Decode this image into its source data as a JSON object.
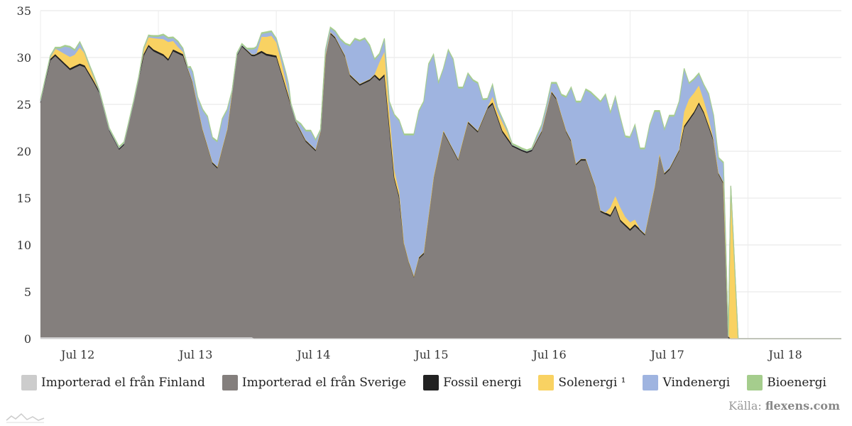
{
  "chart_data": {
    "type": "area",
    "stacked": true,
    "ylim": [
      0,
      35
    ],
    "yticks": [
      0,
      5,
      10,
      15,
      20,
      25,
      30,
      35
    ],
    "xlim": [
      0,
      163
    ],
    "x_ticks": [
      {
        "x": 4,
        "label": "Jul 12"
      },
      {
        "x": 28,
        "label": "Jul 13"
      },
      {
        "x": 52,
        "label": "Jul 14"
      },
      {
        "x": 76,
        "label": "Jul 15"
      },
      {
        "x": 100,
        "label": "Jul 16"
      },
      {
        "x": 124,
        "label": "Jul 17"
      },
      {
        "x": 148,
        "label": "Jul 18"
      }
    ],
    "x_unit": "hours from Jul 12 00:00 (approx.)",
    "series": [
      {
        "name": "Importerad el från Finland",
        "color": "#cccccc",
        "points": [
          [
            0,
            0.15
          ],
          [
            43,
            0.15
          ],
          [
            43,
            0
          ]
        ]
      },
      {
        "name": "Importerad el från Sverige",
        "color": "#847f7d",
        "points": [
          [
            0,
            25
          ],
          [
            2,
            29.5
          ],
          [
            3,
            30
          ],
          [
            6,
            28.5
          ],
          [
            8,
            29
          ],
          [
            9,
            28.8
          ],
          [
            11,
            27
          ],
          [
            12,
            26
          ],
          [
            14,
            22
          ],
          [
            16,
            20
          ],
          [
            17,
            20.5
          ],
          [
            19,
            25
          ],
          [
            21,
            30
          ],
          [
            22,
            31
          ],
          [
            23,
            30.5
          ],
          [
            25,
            30
          ],
          [
            26,
            29.5
          ],
          [
            27,
            30.5
          ],
          [
            29,
            30
          ],
          [
            31,
            27
          ],
          [
            33,
            22
          ],
          [
            35,
            18.5
          ],
          [
            36,
            18
          ],
          [
            38,
            22
          ],
          [
            40,
            30
          ],
          [
            41,
            31
          ],
          [
            43,
            30
          ],
          [
            45,
            30.5
          ],
          [
            46,
            30.2
          ],
          [
            48,
            30
          ],
          [
            50,
            26.5
          ],
          [
            52,
            23
          ],
          [
            54,
            21
          ],
          [
            56,
            20
          ],
          [
            57,
            22
          ],
          [
            58,
            30
          ],
          [
            59,
            32.5
          ],
          [
            60,
            32
          ],
          [
            62,
            30
          ],
          [
            63,
            28
          ],
          [
            65,
            27
          ],
          [
            67,
            27.5
          ],
          [
            68,
            28
          ],
          [
            69,
            27.5
          ],
          [
            70,
            28
          ],
          [
            72,
            17
          ],
          [
            73,
            15
          ],
          [
            74,
            10
          ],
          [
            75,
            8
          ],
          [
            76,
            6.5
          ],
          [
            77,
            8.5
          ],
          [
            78,
            9
          ],
          [
            80,
            17
          ],
          [
            82,
            22
          ],
          [
            84,
            20
          ],
          [
            85,
            19
          ],
          [
            87,
            23
          ],
          [
            89,
            22
          ],
          [
            91,
            24.5
          ],
          [
            92,
            25
          ],
          [
            94,
            22
          ],
          [
            96,
            20.5
          ],
          [
            98,
            20
          ],
          [
            99,
            19.8
          ],
          [
            100,
            20
          ],
          [
            102,
            22
          ],
          [
            104,
            26.2
          ],
          [
            105,
            25.5
          ],
          [
            107,
            22
          ],
          [
            108,
            21
          ],
          [
            109,
            18.5
          ],
          [
            110,
            19
          ],
          [
            111,
            19
          ],
          [
            113,
            16
          ],
          [
            114,
            13.5
          ],
          [
            116,
            13
          ],
          [
            117,
            14
          ],
          [
            118,
            12.5
          ],
          [
            120,
            11.5
          ],
          [
            121,
            12
          ],
          [
            122,
            11.5
          ],
          [
            123,
            11
          ],
          [
            125,
            16
          ],
          [
            126,
            19.5
          ],
          [
            127,
            17.5
          ],
          [
            128,
            18
          ],
          [
            130,
            20
          ],
          [
            131,
            22.5
          ],
          [
            133,
            24
          ],
          [
            134,
            25
          ],
          [
            135,
            24
          ],
          [
            137,
            21
          ],
          [
            138,
            17.5
          ],
          [
            139,
            16.5
          ],
          [
            140,
            0
          ]
        ]
      },
      {
        "name": "Fossil energi",
        "color": "#222222",
        "points": [
          [
            0,
            0.2
          ],
          [
            140,
            0.2
          ],
          [
            140,
            0
          ]
        ]
      },
      {
        "name": "Solenergi ¹",
        "color": "#f9d262",
        "points": [
          [
            0,
            0
          ],
          [
            2,
            0.2
          ],
          [
            3,
            0.6
          ],
          [
            4,
            0.8
          ],
          [
            6,
            1.2
          ],
          [
            7,
            1.2
          ],
          [
            8,
            1.7
          ],
          [
            9,
            1.3
          ],
          [
            10,
            0.8
          ],
          [
            12,
            0
          ],
          [
            20,
            0
          ],
          [
            21,
            0.5
          ],
          [
            22,
            0.8
          ],
          [
            23,
            1.2
          ],
          [
            24,
            1.4
          ],
          [
            25,
            1.6
          ],
          [
            26,
            1.8
          ],
          [
            27,
            0.9
          ],
          [
            28,
            0.5
          ],
          [
            30,
            0
          ],
          [
            44,
            0
          ],
          [
            45,
            1.5
          ],
          [
            46,
            1.8
          ],
          [
            47,
            2.0
          ],
          [
            48,
            1.4
          ],
          [
            49,
            1.1
          ],
          [
            51,
            0
          ],
          [
            68,
            0
          ],
          [
            69,
            1.8
          ],
          [
            70,
            2.4
          ],
          [
            71,
            1.5
          ],
          [
            72,
            0.8
          ],
          [
            73,
            0.5
          ],
          [
            74,
            0
          ],
          [
            91,
            0
          ],
          [
            92,
            0.6
          ],
          [
            93,
            0.5
          ],
          [
            94,
            0.9
          ],
          [
            95,
            0.6
          ],
          [
            96,
            0
          ],
          [
            115,
            0
          ],
          [
            116,
            0.8
          ],
          [
            117,
            1.0
          ],
          [
            118,
            1.3
          ],
          [
            119,
            0.8
          ],
          [
            120,
            0.7
          ],
          [
            121,
            0.5
          ],
          [
            122,
            0
          ],
          [
            130,
            0
          ],
          [
            131,
            1.5
          ],
          [
            132,
            2.1
          ],
          [
            133,
            2.0
          ],
          [
            134,
            1.8
          ],
          [
            135,
            1.2
          ],
          [
            136,
            0.8
          ],
          [
            137,
            0
          ],
          [
            140,
            0
          ],
          [
            140,
            17.8
          ],
          [
            140.5,
            16.3
          ],
          [
            142,
            0
          ]
        ]
      },
      {
        "name": "Vindenergi",
        "color": "#9fb4e0",
        "points": [
          [
            0,
            0
          ],
          [
            3,
            0
          ],
          [
            4,
            0.3
          ],
          [
            5,
            0.8
          ],
          [
            6,
            1.0
          ],
          [
            7,
            0.4
          ],
          [
            8,
            0.5
          ],
          [
            9,
            0
          ],
          [
            20,
            0
          ],
          [
            24,
            0.2
          ],
          [
            25,
            0.4
          ],
          [
            27,
            0.3
          ],
          [
            28,
            0.5
          ],
          [
            30,
            0
          ],
          [
            30.5,
            0.8
          ],
          [
            31,
            1
          ],
          [
            32,
            0.8
          ],
          [
            33,
            2
          ],
          [
            34,
            3
          ],
          [
            35,
            2.5
          ],
          [
            36,
            2.6
          ],
          [
            37,
            3
          ],
          [
            38,
            2
          ],
          [
            39,
            0
          ],
          [
            42,
            0
          ],
          [
            43,
            0.5
          ],
          [
            44,
            0.6
          ],
          [
            45,
            0.3
          ],
          [
            46,
            0.4
          ],
          [
            47,
            0.4
          ],
          [
            48,
            0.3
          ],
          [
            49,
            0.5
          ],
          [
            50,
            0.9
          ],
          [
            50.5,
            0.9
          ],
          [
            51,
            0
          ],
          [
            52,
            0
          ],
          [
            53,
            0.6
          ],
          [
            54,
            0.9
          ],
          [
            55,
            1.4
          ],
          [
            56,
            0.9
          ],
          [
            57,
            0
          ],
          [
            58,
            0.5
          ],
          [
            59,
            0.4
          ],
          [
            60,
            0.5
          ],
          [
            61,
            0.7
          ],
          [
            62,
            1.2
          ],
          [
            63,
            3.0
          ],
          [
            64,
            4.2
          ],
          [
            65,
            4.5
          ],
          [
            66,
            4.5
          ],
          [
            67,
            3.5
          ],
          [
            68,
            1.5
          ],
          [
            69,
            0.8
          ],
          [
            70,
            1.3
          ],
          [
            71,
            1.0
          ],
          [
            72,
            5.8
          ],
          [
            73,
            7.5
          ],
          [
            74,
            11.5
          ],
          [
            75,
            13.5
          ],
          [
            76,
            15
          ],
          [
            77,
            15.5
          ],
          [
            78,
            16
          ],
          [
            79,
            16
          ],
          [
            80,
            13
          ],
          [
            81,
            7.5
          ],
          [
            82,
            6.5
          ],
          [
            83,
            9.5
          ],
          [
            84,
            9.5
          ],
          [
            85,
            7.5
          ],
          [
            86,
            5.5
          ],
          [
            87,
            5.0
          ],
          [
            88,
            4.8
          ],
          [
            89,
            5
          ],
          [
            90,
            2
          ],
          [
            91,
            0.8
          ],
          [
            92,
            1.2
          ],
          [
            93,
            0.4
          ],
          [
            94,
            0.3
          ],
          [
            96,
            0
          ],
          [
            97,
            0
          ],
          [
            98,
            0
          ],
          [
            100,
            0
          ],
          [
            101,
            0.3
          ],
          [
            102,
            0.5
          ],
          [
            103,
            0.5
          ],
          [
            104,
            0.8
          ],
          [
            105,
            1.5
          ],
          [
            106,
            2.0
          ],
          [
            107,
            3.5
          ],
          [
            108,
            5.5
          ],
          [
            109,
            6.5
          ],
          [
            110,
            6.0
          ],
          [
            111,
            7.3
          ],
          [
            112,
            8.5
          ],
          [
            113,
            9.5
          ],
          [
            114,
            11.5
          ],
          [
            115,
            12.5
          ],
          [
            116,
            10
          ],
          [
            117,
            10.5
          ],
          [
            118,
            9.5
          ],
          [
            119,
            8.5
          ],
          [
            120,
            9
          ],
          [
            121,
            10
          ],
          [
            122,
            8.5
          ],
          [
            123,
            9
          ],
          [
            124,
            9.0
          ],
          [
            125,
            8
          ],
          [
            126,
            4.5
          ],
          [
            127,
            4.5
          ],
          [
            128,
            5.5
          ],
          [
            129,
            4.5
          ],
          [
            130,
            5
          ],
          [
            131,
            4.5
          ],
          [
            132,
            1.6
          ],
          [
            133,
            1.4
          ],
          [
            134,
            1.2
          ],
          [
            135,
            1.6
          ],
          [
            136,
            2.5
          ],
          [
            137,
            2.5
          ],
          [
            138,
            1.5
          ],
          [
            139,
            2.0
          ],
          [
            140,
            0
          ]
        ]
      },
      {
        "name": "Bioenergi",
        "color": "#a5cd8d",
        "points": [
          [
            0,
            0.15
          ],
          [
            140,
            0.15
          ],
          [
            140,
            0
          ]
        ]
      }
    ]
  },
  "legend": [
    {
      "label": "Importerad el från Finland",
      "color": "#cccccc"
    },
    {
      "label": "Importerad el från Sverige",
      "color": "#847f7d"
    },
    {
      "label": "Fossil energi",
      "color": "#222222"
    },
    {
      "label": "Solenergi ¹",
      "color": "#f9d262"
    },
    {
      "label": "Vindenergi",
      "color": "#9fb4e0"
    },
    {
      "label": "Bioenergi",
      "color": "#a5cd8d"
    }
  ],
  "source": {
    "prefix": "Källa:",
    "name": "flexens.com"
  }
}
